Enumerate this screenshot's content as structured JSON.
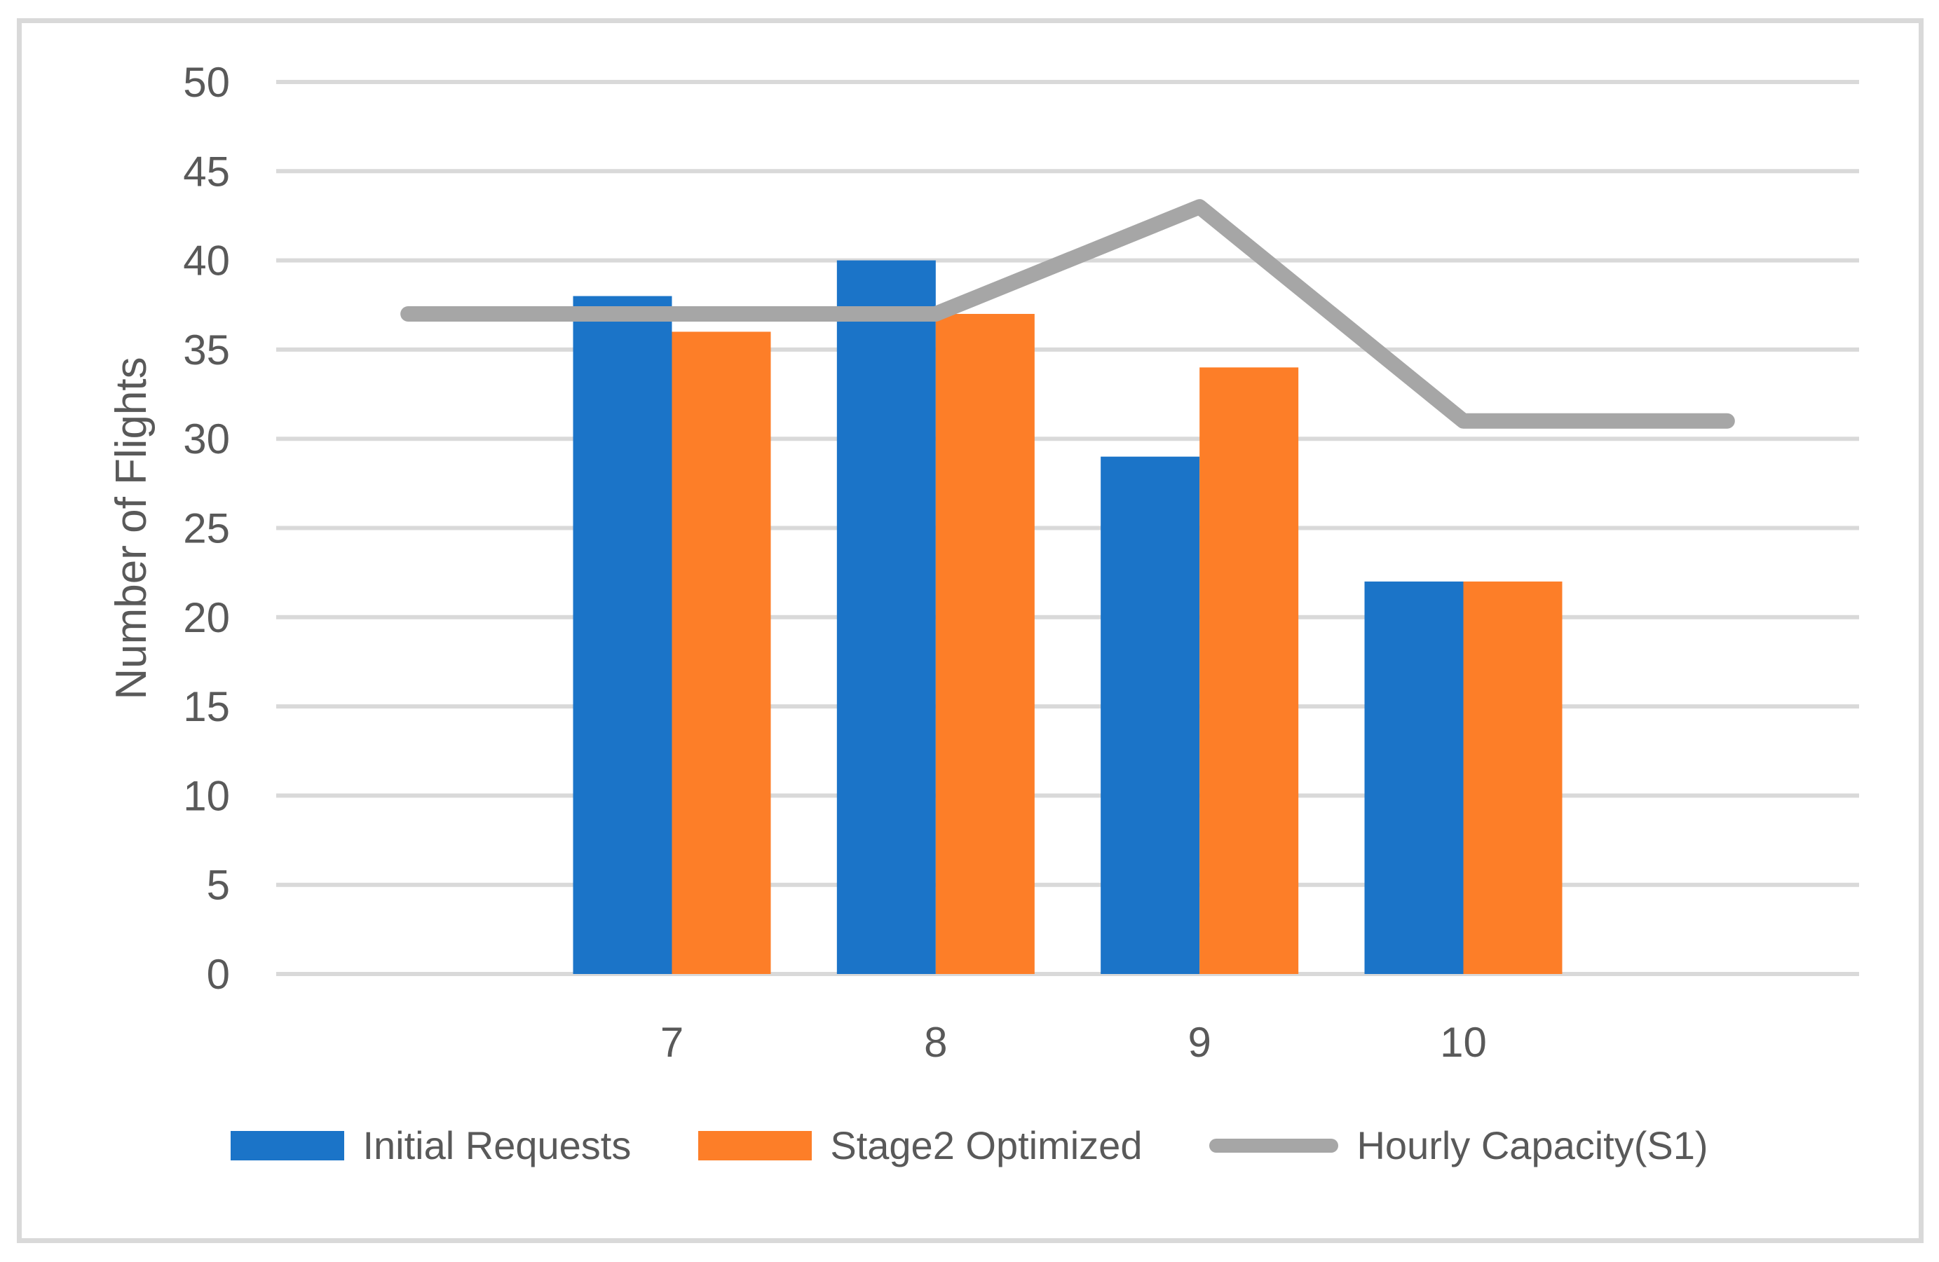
{
  "figure": {
    "border_color": "#d9d9d9",
    "background_color": "#ffffff"
  },
  "chart_data": {
    "type": "combo-bar-line",
    "title": "",
    "xlabel": "",
    "ylabel": "Number of Flights",
    "ylim": [
      0,
      50
    ],
    "yticks": [
      0,
      5,
      10,
      15,
      20,
      25,
      30,
      35,
      40,
      45,
      50
    ],
    "ytick_labels": [
      "0",
      "5",
      "10",
      "15",
      "20",
      "25",
      "30",
      "35",
      "40",
      "45",
      "50"
    ],
    "categories": [
      "",
      "7",
      "8",
      "9",
      "10",
      ""
    ],
    "grid": "horizontal",
    "legend_position": "bottom",
    "colors": {
      "grid": "#d9d9d9",
      "axis_text": "#595959"
    },
    "series": [
      {
        "name": "Initial Requests",
        "type": "bar",
        "color": "#1b74c8",
        "values": [
          null,
          38,
          40,
          29,
          22,
          null
        ]
      },
      {
        "name": "Stage2 Optimized",
        "type": "bar",
        "color": "#fd7e28",
        "values": [
          null,
          36,
          37,
          34,
          22,
          null
        ]
      },
      {
        "name": "Hourly Capacity(S1)",
        "type": "line",
        "color": "#a6a6a6",
        "values": [
          37,
          37,
          37,
          43,
          31,
          31
        ]
      }
    ]
  }
}
